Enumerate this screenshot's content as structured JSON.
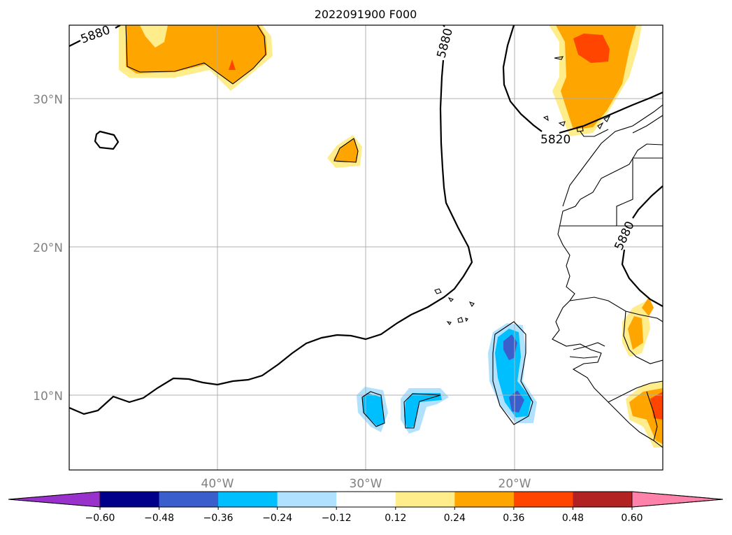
{
  "title": "2022091900 F000",
  "lat_labels": [
    "30°N",
    "20°N",
    "10°N"
  ],
  "lon_labels": [
    "40°W",
    "30°W",
    "20°W"
  ],
  "contour_labels": [
    "5880",
    "5880",
    "5820",
    "5880"
  ],
  "colorbar": {
    "ticks": [
      "−0.60",
      "−0.48",
      "−0.36",
      "−0.24",
      "−0.12",
      "0.12",
      "0.24",
      "0.36",
      "0.48",
      "0.60"
    ],
    "levels": [
      -0.6,
      -0.48,
      -0.36,
      -0.24,
      -0.12,
      0.12,
      0.24,
      0.36,
      0.48,
      0.6
    ],
    "colors": [
      "#9932cc",
      "#00008b",
      "#3a5fcd",
      "#00bfff",
      "#b0e2ff",
      "#ffffff",
      "#ffec8b",
      "#ffa500",
      "#ff4500",
      "#b22222",
      "#ff82ab"
    ],
    "extend": "both"
  },
  "map": {
    "lon_range": [
      -50,
      -10
    ],
    "lat_range": [
      5,
      35
    ],
    "gridlines": true
  }
}
